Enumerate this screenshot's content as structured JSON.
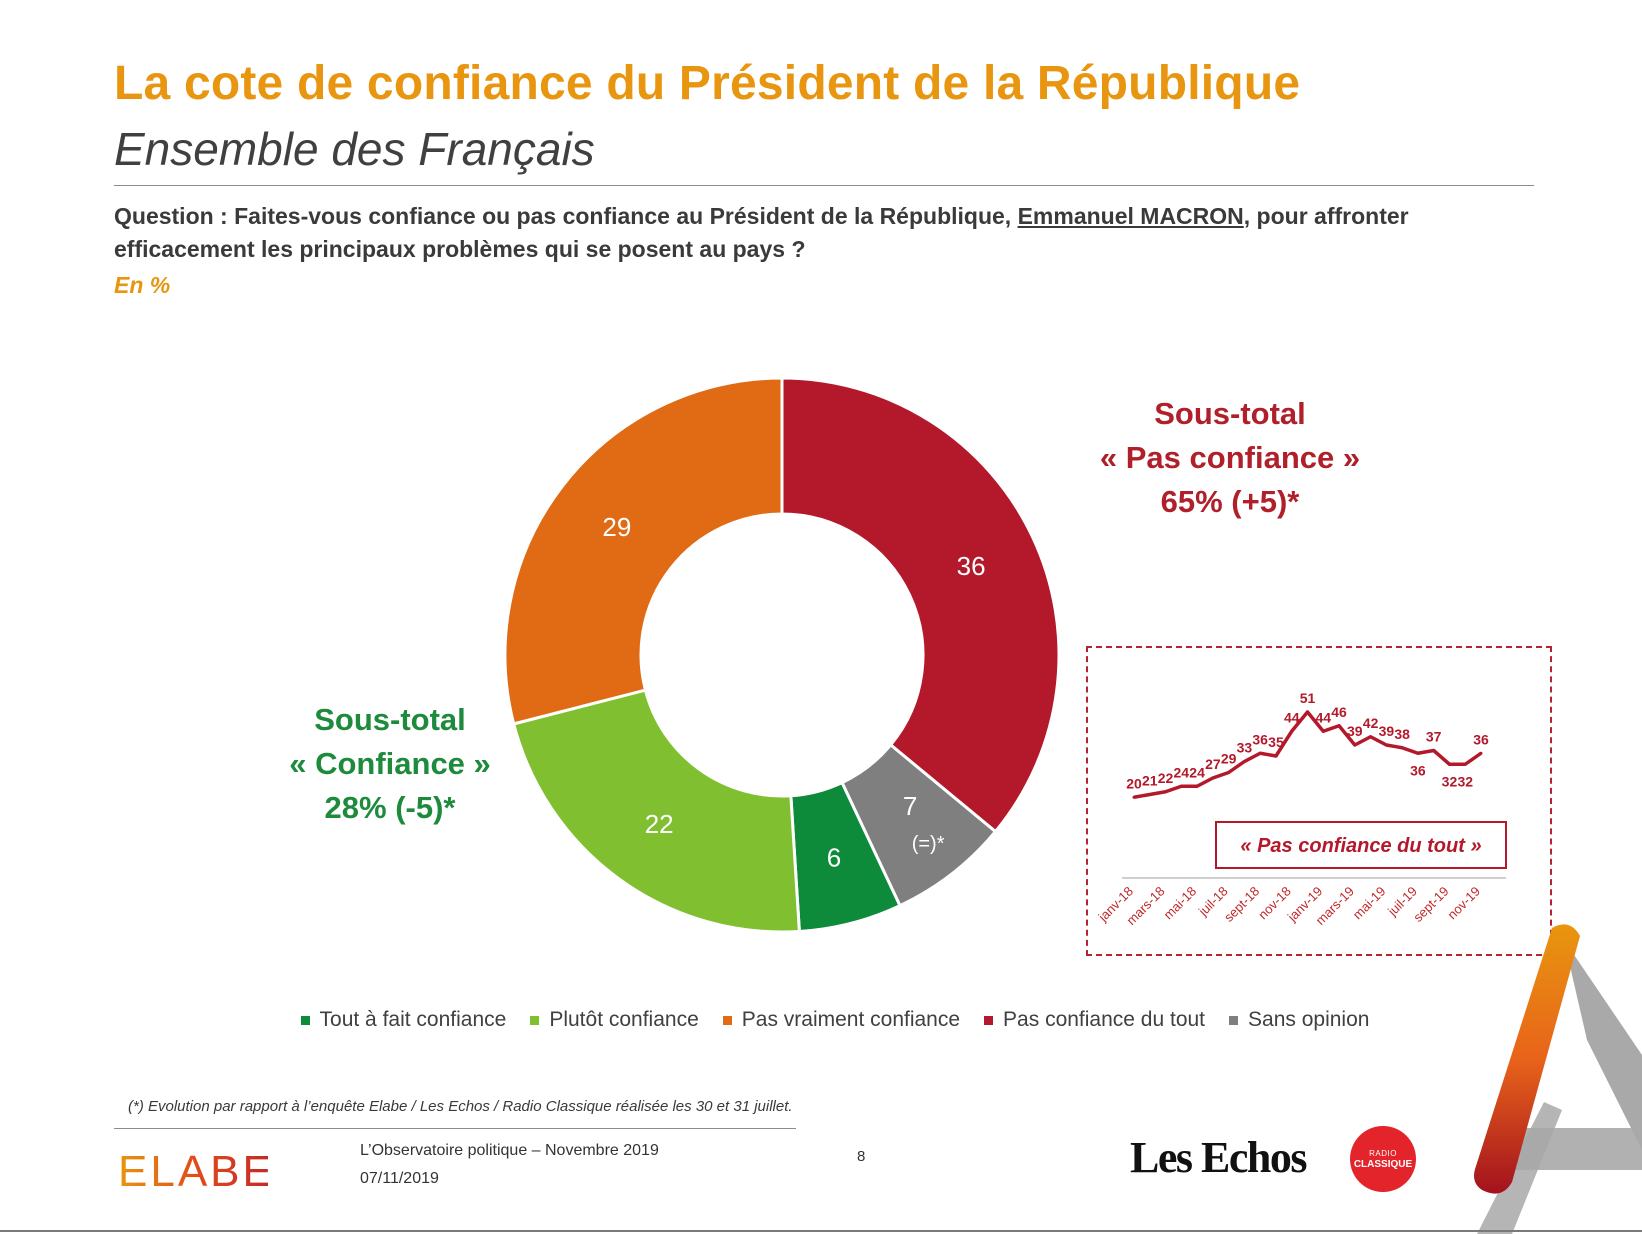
{
  "header": {
    "title": "La cote de confiance du Président de la République",
    "subtitle": "Ensemble des Français",
    "question_prefix": "Question : Faites-vous confiance ou pas confiance au Président de la République, ",
    "question_name": "Emmanuel MACRON",
    "question_suffix": ", pour affronter efficacement les principaux problèmes qui se posent au pays ?",
    "unit": "En %"
  },
  "subtotals": {
    "negative": {
      "line1": "Sous-total",
      "line2": "« Pas confiance »",
      "line3": "65% (+5)*"
    },
    "positive": {
      "line1": "Sous-total",
      "line2": "« Confiance »",
      "line3": "28% (-5)*"
    }
  },
  "colors": {
    "title": "#e8960f",
    "tout_a_fait": "#0d8a3a",
    "plutot": "#80c030",
    "pas_vraiment": "#e06b14",
    "pas_du_tout": "#b3192a",
    "sans_opinion": "#7f7f7f",
    "negative_text": "#b0202a",
    "positive_text": "#1e8a3c"
  },
  "chart_data": [
    {
      "type": "pie",
      "donut": true,
      "start": "top",
      "direction": "clockwise",
      "slices": [
        {
          "label": "Pas confiance du tout",
          "value": 36,
          "color": "#b3192a",
          "display": "36"
        },
        {
          "label": "Sans opinion",
          "value": 7,
          "color": "#7f7f7f",
          "display": "7",
          "note": "(=)*"
        },
        {
          "label": "Tout à fait confiance",
          "value": 6,
          "color": "#0d8a3a",
          "display": "6"
        },
        {
          "label": "Plutôt confiance",
          "value": 22,
          "color": "#80c030",
          "display": "22"
        },
        {
          "label": "Pas vraiment confiance",
          "value": 29,
          "color": "#e06b14",
          "display": "29"
        }
      ],
      "legend": [
        {
          "label": "Tout à fait confiance",
          "color": "#0d8a3a"
        },
        {
          "label": "Plutôt confiance",
          "color": "#80c030"
        },
        {
          "label": "Pas vraiment confiance",
          "color": "#e06b14"
        },
        {
          "label": "Pas confiance du tout",
          "color": "#b3192a"
        },
        {
          "label": "Sans opinion",
          "color": "#7f7f7f"
        }
      ],
      "legend_position": "bottom"
    },
    {
      "type": "line",
      "series_label": "« Pas confiance du tout »",
      "color": "#b3192a",
      "x_tick_labels": [
        "janv-18",
        "mars-18",
        "mai-18",
        "juil-18",
        "sept-18",
        "nov-18",
        "janv-19",
        "mars-19",
        "mai-19",
        "juil-19",
        "sept-19",
        "nov-19"
      ],
      "values": [
        20,
        21,
        22,
        24,
        24,
        27,
        29,
        33,
        36,
        35,
        44,
        51,
        44,
        46,
        39,
        42,
        39,
        38,
        36,
        37,
        32,
        32,
        36
      ],
      "ylim": [
        15,
        55
      ],
      "grid": false
    }
  ],
  "footer": {
    "footnote": "(*) Evolution par rapport à l’enquête Elabe / Les Echos / Radio Classique réalisée les 30 et 31 juillet.",
    "line1": "L’Observatoire politique – Novembre 2019",
    "line2": "07/11/2019",
    "page_number": "8",
    "elabe_logo_text": "ELABE",
    "echos_logo_text": "Les Echos",
    "radio_logo_line1": "RADIO",
    "radio_logo_line2": "CLASSIQUE"
  }
}
